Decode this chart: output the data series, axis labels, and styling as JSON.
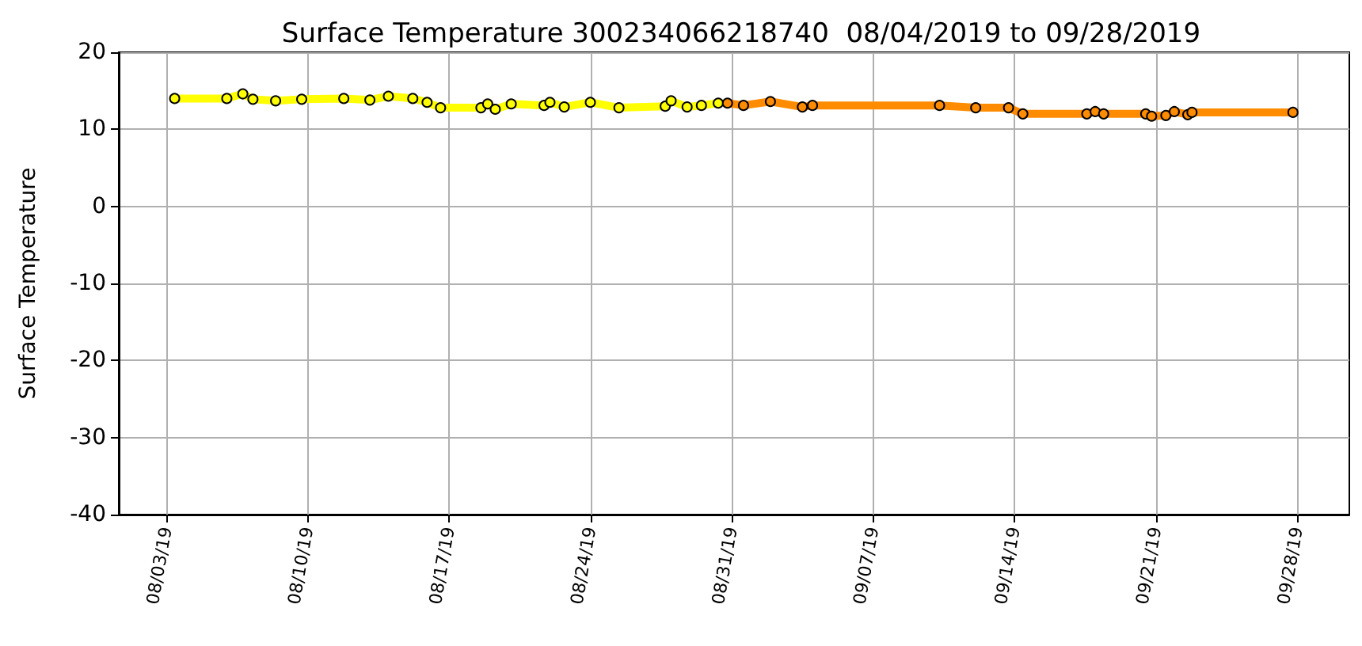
{
  "chart_data": {
    "type": "line",
    "title": "Surface Temperature 300234066218740  08/04/2019 to 09/28/2019",
    "ylabel": "Surface Temperature",
    "xlim": [
      "2019-07-31T15:36",
      "2019-09-30T14:00"
    ],
    "xticks": [
      {
        "value": "2019-08-03",
        "label": "08/03/19"
      },
      {
        "value": "2019-08-10",
        "label": "08/10/19"
      },
      {
        "value": "2019-08-17",
        "label": "08/17/19"
      },
      {
        "value": "2019-08-24",
        "label": "08/24/19"
      },
      {
        "value": "2019-08-31",
        "label": "08/31/19"
      },
      {
        "value": "2019-09-07",
        "label": "09/07/19"
      },
      {
        "value": "2019-09-14",
        "label": "09/14/19"
      },
      {
        "value": "2019-09-21",
        "label": "09/21/19"
      },
      {
        "value": "2019-09-28",
        "label": "09/28/19"
      }
    ],
    "ylim": [
      -40,
      20
    ],
    "yticks": [
      -40,
      -30,
      -20,
      -10,
      0,
      10,
      20
    ],
    "grid": true,
    "marker": "circle",
    "line_style": "solid",
    "series": [
      {
        "color": "#ffff00",
        "x": [
          "2019-08-03T10:00",
          "2019-08-06T00:00",
          "2019-08-06T19:00",
          "2019-08-07T07:00",
          "2019-08-08T10:00",
          "2019-08-09T17:00",
          "2019-08-11T19:00",
          "2019-08-13T02:00",
          "2019-08-14T00:00",
          "2019-08-15T05:00",
          "2019-08-15T22:00",
          "2019-08-16T14:00",
          "2019-08-18T14:00",
          "2019-08-18T22:00",
          "2019-08-19T07:00",
          "2019-08-20T02:00",
          "2019-08-21T17:00",
          "2019-08-22T00:00",
          "2019-08-22T17:00",
          "2019-08-24T00:00",
          "2019-08-25T10:00",
          "2019-08-27T17:00",
          "2019-08-28T00:00",
          "2019-08-28T19:00",
          "2019-08-29T12:00",
          "2019-08-30T08:00"
        ],
        "values": [
          14.0,
          14.0,
          14.6,
          13.9,
          13.7,
          13.9,
          14.0,
          13.8,
          14.3,
          14.0,
          13.5,
          12.8,
          12.8,
          13.3,
          12.6,
          13.3,
          13.1,
          13.5,
          12.9,
          13.5,
          12.8,
          13.0,
          13.7,
          12.9,
          13.1,
          13.4
        ]
      },
      {
        "color": "#ff8c00",
        "x": [
          "2019-08-30T19:00",
          "2019-08-31T14:00",
          "2019-09-01T22:00",
          "2019-09-03T12:00",
          "2019-09-04T00:00",
          "2019-09-10T07:00",
          "2019-09-12T02:00",
          "2019-09-13T17:00",
          "2019-09-14T10:00",
          "2019-09-17T14:00",
          "2019-09-18T00:00",
          "2019-09-18T10:00",
          "2019-09-20T12:00",
          "2019-09-20T19:00",
          "2019-09-21T12:00",
          "2019-09-21T22:00",
          "2019-09-22T14:00",
          "2019-09-22T19:00",
          "2019-09-27T19:00"
        ],
        "values": [
          13.4,
          13.1,
          13.6,
          12.9,
          13.1,
          13.1,
          12.8,
          12.8,
          12.0,
          12.0,
          12.3,
          12.0,
          12.0,
          11.7,
          11.8,
          12.3,
          11.9,
          12.2,
          12.2
        ]
      }
    ]
  }
}
